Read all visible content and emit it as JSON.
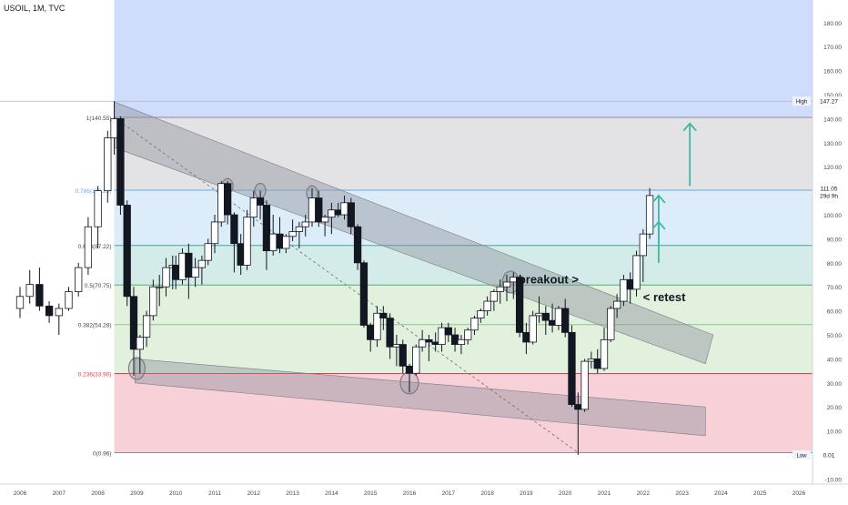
{
  "header": {
    "symbol_label": "USOIL, 1M, TVC"
  },
  "colors": {
    "up": "#ffffff",
    "down": "#131722",
    "wick": "#131722",
    "fib_blue": "#cfdcfb",
    "fib_grey": "#e3e3e6",
    "fib_lightblue": "#ddecf9",
    "fib_teal": "#d3ece9",
    "fib_green": "#e1f1de",
    "fib_red": "#f8d1d8",
    "fib_line_blue": "#6aaee0",
    "fib_line_teal": "#40a89c",
    "fib_label_red": "#f23645",
    "arrow": "#3db8a2",
    "channel": "#8a8d99"
  },
  "chart_data": {
    "type": "candlestick",
    "symbol": "USOIL",
    "timeframe": "1M",
    "source": "TVC",
    "x_axis": {
      "tick_labels": [
        "2006",
        "2007",
        "2008",
        "2009",
        "2010",
        "2011",
        "2012",
        "2013",
        "2014",
        "2015",
        "2016",
        "2017",
        "2018",
        "2019",
        "2020",
        "2021",
        "2022",
        "2023",
        "2024",
        "2025",
        "2026"
      ],
      "range": [
        2005.9,
        2027.2
      ]
    },
    "y_axis": {
      "tick_labels": [
        "180.00",
        "170.00",
        "160.00",
        "150.00",
        "140.00",
        "130.00",
        "120.00",
        "110.00",
        "100.00",
        "90.00",
        "80.00",
        "70.00",
        "60.00",
        "50.00",
        "40.00",
        "30.00",
        "20.00",
        "10.00",
        "-10.00"
      ],
      "range": [
        -13,
        190
      ]
    },
    "price_tags": [
      {
        "label": "High",
        "value": "147.27",
        "y": 147.27
      },
      {
        "label": "",
        "value": "111.05",
        "y": 111.05
      },
      {
        "label": "",
        "value": "29d 9h",
        "y": 108.0
      },
      {
        "label": "Low",
        "value": "0.01",
        "y": 0.01
      }
    ],
    "fib_levels": [
      {
        "ratio": 1,
        "price": 140.55,
        "label": "1(140.55)"
      },
      {
        "ratio": 0.786,
        "price": 110.25,
        "label": "0.786(110.25)"
      },
      {
        "ratio": 0.618,
        "price": 87.22,
        "label": "0.618(87.22)"
      },
      {
        "ratio": 0.5,
        "price": 70.75,
        "label": "0.5(70.75)"
      },
      {
        "ratio": 0.382,
        "price": 54.28,
        "label": "0.382(54.28)"
      },
      {
        "ratio": 0.236,
        "price": 33.9,
        "label": "0.236(33.90)"
      },
      {
        "ratio": 0,
        "price": 0.96,
        "label": "0(0.96)"
      }
    ],
    "annotations": [
      "breakout  >",
      "< retest"
    ],
    "candles": [
      {
        "t": 2006.0,
        "o": 61,
        "h": 70,
        "l": 57,
        "c": 66
      },
      {
        "t": 2006.25,
        "o": 66,
        "h": 77,
        "l": 63,
        "c": 71
      },
      {
        "t": 2006.5,
        "o": 71,
        "h": 78,
        "l": 60,
        "c": 62
      },
      {
        "t": 2006.75,
        "o": 62,
        "h": 64,
        "l": 55,
        "c": 58
      },
      {
        "t": 2007.0,
        "o": 58,
        "h": 63,
        "l": 50,
        "c": 61
      },
      {
        "t": 2007.25,
        "o": 61,
        "h": 70,
        "l": 60,
        "c": 68
      },
      {
        "t": 2007.5,
        "o": 68,
        "h": 80,
        "l": 66,
        "c": 78
      },
      {
        "t": 2007.75,
        "o": 78,
        "h": 99,
        "l": 75,
        "c": 95
      },
      {
        "t": 2008.0,
        "o": 95,
        "h": 112,
        "l": 86,
        "c": 110
      },
      {
        "t": 2008.25,
        "o": 110,
        "h": 135,
        "l": 105,
        "c": 132
      },
      {
        "t": 2008.42,
        "o": 132,
        "h": 147.27,
        "l": 125,
        "c": 140
      },
      {
        "t": 2008.58,
        "o": 140,
        "h": 141,
        "l": 100,
        "c": 104
      },
      {
        "t": 2008.75,
        "o": 104,
        "h": 106,
        "l": 62,
        "c": 66
      },
      {
        "t": 2008.92,
        "o": 66,
        "h": 70,
        "l": 33,
        "c": 44
      },
      {
        "t": 2009.08,
        "o": 44,
        "h": 50,
        "l": 34,
        "c": 49
      },
      {
        "t": 2009.25,
        "o": 49,
        "h": 60,
        "l": 45,
        "c": 58
      },
      {
        "t": 2009.42,
        "o": 58,
        "h": 73,
        "l": 56,
        "c": 70
      },
      {
        "t": 2009.58,
        "o": 70,
        "h": 75,
        "l": 62,
        "c": 70
      },
      {
        "t": 2009.75,
        "o": 70,
        "h": 82,
        "l": 66,
        "c": 78
      },
      {
        "t": 2009.92,
        "o": 78,
        "h": 83,
        "l": 69,
        "c": 79
      },
      {
        "t": 2010.0,
        "o": 79,
        "h": 83,
        "l": 69,
        "c": 73
      },
      {
        "t": 2010.17,
        "o": 73,
        "h": 86,
        "l": 71,
        "c": 84
      },
      {
        "t": 2010.33,
        "o": 84,
        "h": 88,
        "l": 65,
        "c": 74
      },
      {
        "t": 2010.5,
        "o": 74,
        "h": 82,
        "l": 70,
        "c": 78
      },
      {
        "t": 2010.67,
        "o": 78,
        "h": 83,
        "l": 71,
        "c": 81
      },
      {
        "t": 2010.83,
        "o": 81,
        "h": 90,
        "l": 79,
        "c": 88
      },
      {
        "t": 2011.0,
        "o": 88,
        "h": 100,
        "l": 84,
        "c": 97
      },
      {
        "t": 2011.17,
        "o": 97,
        "h": 114,
        "l": 95,
        "c": 113
      },
      {
        "t": 2011.33,
        "o": 113,
        "h": 114,
        "l": 96,
        "c": 100
      },
      {
        "t": 2011.5,
        "o": 100,
        "h": 101,
        "l": 76,
        "c": 88
      },
      {
        "t": 2011.67,
        "o": 88,
        "h": 92,
        "l": 75,
        "c": 79
      },
      {
        "t": 2011.83,
        "o": 79,
        "h": 102,
        "l": 77,
        "c": 99
      },
      {
        "t": 2012.0,
        "o": 99,
        "h": 110,
        "l": 95,
        "c": 107
      },
      {
        "t": 2012.17,
        "o": 107,
        "h": 110,
        "l": 98,
        "c": 104
      },
      {
        "t": 2012.33,
        "o": 104,
        "h": 106,
        "l": 77,
        "c": 85
      },
      {
        "t": 2012.5,
        "o": 85,
        "h": 100,
        "l": 83,
        "c": 92
      },
      {
        "t": 2012.67,
        "o": 92,
        "h": 99,
        "l": 84,
        "c": 86
      },
      {
        "t": 2012.83,
        "o": 86,
        "h": 92,
        "l": 84,
        "c": 91
      },
      {
        "t": 2013.0,
        "o": 91,
        "h": 98,
        "l": 89,
        "c": 93
      },
      {
        "t": 2013.17,
        "o": 93,
        "h": 97,
        "l": 86,
        "c": 95
      },
      {
        "t": 2013.33,
        "o": 95,
        "h": 100,
        "l": 91,
        "c": 97
      },
      {
        "t": 2013.5,
        "o": 97,
        "h": 111,
        "l": 95,
        "c": 107
      },
      {
        "t": 2013.67,
        "o": 107,
        "h": 110,
        "l": 95,
        "c": 97
      },
      {
        "t": 2013.83,
        "o": 97,
        "h": 100,
        "l": 91,
        "c": 99
      },
      {
        "t": 2014.0,
        "o": 99,
        "h": 105,
        "l": 92,
        "c": 102
      },
      {
        "t": 2014.17,
        "o": 102,
        "h": 105,
        "l": 99,
        "c": 100
      },
      {
        "t": 2014.33,
        "o": 100,
        "h": 108,
        "l": 98,
        "c": 105
      },
      {
        "t": 2014.5,
        "o": 105,
        "h": 107,
        "l": 92,
        "c": 95
      },
      {
        "t": 2014.67,
        "o": 95,
        "h": 96,
        "l": 77,
        "c": 80
      },
      {
        "t": 2014.83,
        "o": 80,
        "h": 81,
        "l": 53,
        "c": 54
      },
      {
        "t": 2015.0,
        "o": 54,
        "h": 55,
        "l": 43,
        "c": 48
      },
      {
        "t": 2015.17,
        "o": 48,
        "h": 62,
        "l": 45,
        "c": 59
      },
      {
        "t": 2015.33,
        "o": 59,
        "h": 62,
        "l": 52,
        "c": 57
      },
      {
        "t": 2015.5,
        "o": 57,
        "h": 59,
        "l": 40,
        "c": 45
      },
      {
        "t": 2015.67,
        "o": 45,
        "h": 50,
        "l": 37,
        "c": 46
      },
      {
        "t": 2015.83,
        "o": 46,
        "h": 48,
        "l": 34,
        "c": 37
      },
      {
        "t": 2016.0,
        "o": 37,
        "h": 38,
        "l": 26,
        "c": 34
      },
      {
        "t": 2016.17,
        "o": 34,
        "h": 46,
        "l": 33,
        "c": 45
      },
      {
        "t": 2016.33,
        "o": 45,
        "h": 52,
        "l": 43,
        "c": 48
      },
      {
        "t": 2016.5,
        "o": 48,
        "h": 50,
        "l": 39,
        "c": 47
      },
      {
        "t": 2016.67,
        "o": 47,
        "h": 51,
        "l": 43,
        "c": 46
      },
      {
        "t": 2016.83,
        "o": 46,
        "h": 55,
        "l": 43,
        "c": 53
      },
      {
        "t": 2017.0,
        "o": 53,
        "h": 55,
        "l": 47,
        "c": 50
      },
      {
        "t": 2017.17,
        "o": 50,
        "h": 53,
        "l": 43,
        "c": 46
      },
      {
        "t": 2017.33,
        "o": 46,
        "h": 50,
        "l": 42,
        "c": 48
      },
      {
        "t": 2017.5,
        "o": 48,
        "h": 53,
        "l": 46,
        "c": 52
      },
      {
        "t": 2017.67,
        "o": 52,
        "h": 58,
        "l": 50,
        "c": 57
      },
      {
        "t": 2017.83,
        "o": 57,
        "h": 61,
        "l": 55,
        "c": 60
      },
      {
        "t": 2018.0,
        "o": 60,
        "h": 66,
        "l": 58,
        "c": 64
      },
      {
        "t": 2018.17,
        "o": 64,
        "h": 69,
        "l": 60,
        "c": 68
      },
      {
        "t": 2018.33,
        "o": 68,
        "h": 73,
        "l": 63,
        "c": 70
      },
      {
        "t": 2018.5,
        "o": 70,
        "h": 75,
        "l": 64,
        "c": 72
      },
      {
        "t": 2018.67,
        "o": 72,
        "h": 76,
        "l": 65,
        "c": 74
      },
      {
        "t": 2018.83,
        "o": 74,
        "h": 74,
        "l": 49,
        "c": 51
      },
      {
        "t": 2019.0,
        "o": 51,
        "h": 55,
        "l": 42,
        "c": 47
      },
      {
        "t": 2019.17,
        "o": 47,
        "h": 60,
        "l": 46,
        "c": 58
      },
      {
        "t": 2019.33,
        "o": 58,
        "h": 66,
        "l": 55,
        "c": 59
      },
      {
        "t": 2019.5,
        "o": 59,
        "h": 62,
        "l": 50,
        "c": 56
      },
      {
        "t": 2019.67,
        "o": 56,
        "h": 63,
        "l": 51,
        "c": 54
      },
      {
        "t": 2019.83,
        "o": 54,
        "h": 62,
        "l": 52,
        "c": 61
      },
      {
        "t": 2020.0,
        "o": 61,
        "h": 65,
        "l": 49,
        "c": 51
      },
      {
        "t": 2020.17,
        "o": 51,
        "h": 54,
        "l": 20,
        "c": 21
      },
      {
        "t": 2020.33,
        "o": 21,
        "h": 26,
        "l": 0.01,
        "c": 19
      },
      {
        "t": 2020.5,
        "o": 19,
        "h": 40,
        "l": 18,
        "c": 39
      },
      {
        "t": 2020.67,
        "o": 39,
        "h": 43,
        "l": 36,
        "c": 40
      },
      {
        "t": 2020.83,
        "o": 40,
        "h": 44,
        "l": 34,
        "c": 36
      },
      {
        "t": 2021.0,
        "o": 36,
        "h": 53,
        "l": 35,
        "c": 48
      },
      {
        "t": 2021.17,
        "o": 48,
        "h": 62,
        "l": 47,
        "c": 61
      },
      {
        "t": 2021.33,
        "o": 61,
        "h": 67,
        "l": 57,
        "c": 64
      },
      {
        "t": 2021.5,
        "o": 64,
        "h": 75,
        "l": 62,
        "c": 73
      },
      {
        "t": 2021.67,
        "o": 73,
        "h": 76,
        "l": 63,
        "c": 69
      },
      {
        "t": 2021.83,
        "o": 69,
        "h": 85,
        "l": 66,
        "c": 83
      },
      {
        "t": 2022.0,
        "o": 83,
        "h": 94,
        "l": 72,
        "c": 92
      },
      {
        "t": 2022.17,
        "o": 92,
        "h": 111.05,
        "l": 90,
        "c": 108
      }
    ]
  }
}
